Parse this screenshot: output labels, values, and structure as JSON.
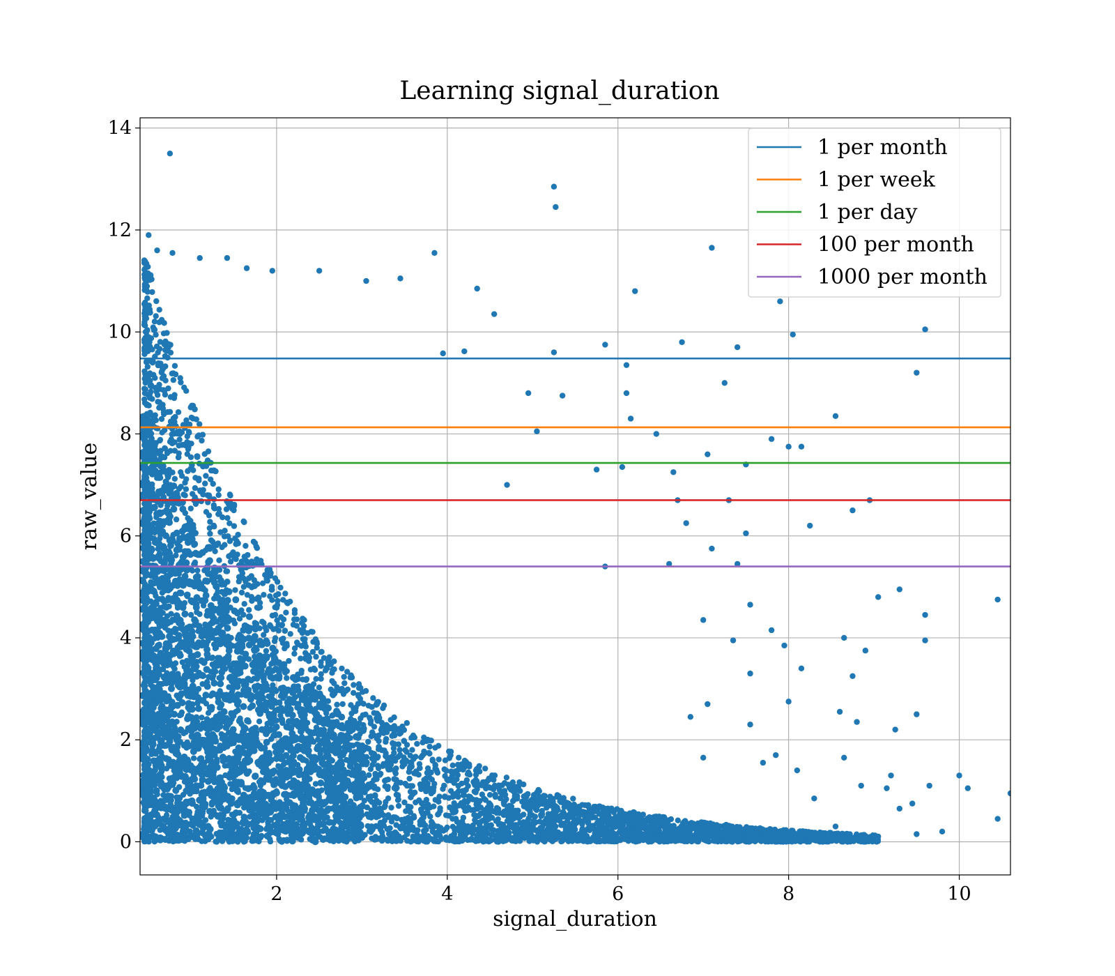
{
  "chart_data": {
    "type": "scatter",
    "title": "Learning signal_duration",
    "xlabel": "signal_duration",
    "ylabel": "raw_value",
    "xlim": [
      0.4,
      10.6
    ],
    "ylim": [
      -0.65,
      14.2
    ],
    "xticks": [
      2,
      4,
      6,
      8,
      10
    ],
    "yticks": [
      0,
      2,
      4,
      6,
      8,
      10,
      12,
      14
    ],
    "grid": true,
    "legend_position": "top-right",
    "scatter_color": "#1f77b4",
    "scatter_series": {
      "points": [
        [
          0.75,
          13.5
        ],
        [
          5.25,
          12.85
        ],
        [
          5.27,
          12.45
        ],
        [
          0.5,
          11.9
        ],
        [
          0.6,
          11.6
        ],
        [
          0.78,
          11.55
        ],
        [
          1.1,
          11.45
        ],
        [
          1.42,
          11.45
        ],
        [
          1.65,
          11.25
        ],
        [
          1.95,
          11.2
        ],
        [
          2.5,
          11.2
        ],
        [
          3.05,
          11.0
        ],
        [
          3.45,
          11.05
        ],
        [
          3.85,
          11.55
        ],
        [
          4.35,
          10.85
        ],
        [
          4.55,
          10.35
        ],
        [
          7.1,
          11.65
        ],
        [
          6.2,
          10.8
        ],
        [
          7.9,
          10.6
        ],
        [
          9.6,
          10.05
        ],
        [
          8.05,
          9.95
        ],
        [
          6.75,
          9.8
        ],
        [
          7.4,
          9.7
        ],
        [
          5.85,
          9.75
        ],
        [
          5.25,
          9.6
        ],
        [
          4.2,
          9.62
        ],
        [
          3.95,
          9.58
        ],
        [
          6.1,
          9.35
        ],
        [
          9.5,
          9.2
        ],
        [
          7.25,
          9.0
        ],
        [
          6.1,
          8.8
        ],
        [
          5.35,
          8.75
        ],
        [
          4.95,
          8.8
        ],
        [
          8.55,
          8.35
        ],
        [
          6.15,
          8.3
        ],
        [
          6.45,
          8.0
        ],
        [
          5.05,
          8.05
        ],
        [
          7.8,
          7.9
        ],
        [
          8.0,
          7.75
        ],
        [
          8.15,
          7.75
        ],
        [
          7.05,
          7.6
        ],
        [
          7.5,
          7.4
        ],
        [
          6.65,
          7.25
        ],
        [
          5.75,
          7.3
        ],
        [
          4.7,
          7.0
        ],
        [
          6.05,
          7.35
        ],
        [
          7.3,
          6.7
        ],
        [
          6.7,
          6.7
        ],
        [
          8.75,
          6.5
        ],
        [
          8.95,
          6.7
        ],
        [
          6.8,
          6.25
        ],
        [
          8.25,
          6.2
        ],
        [
          7.5,
          6.05
        ],
        [
          7.1,
          5.75
        ],
        [
          5.85,
          5.4
        ],
        [
          7.4,
          5.45
        ],
        [
          6.6,
          5.45
        ],
        [
          9.05,
          4.8
        ],
        [
          9.3,
          4.95
        ],
        [
          10.45,
          4.75
        ],
        [
          7.55,
          4.65
        ],
        [
          9.6,
          4.45
        ],
        [
          7.0,
          4.35
        ],
        [
          7.35,
          3.95
        ],
        [
          7.8,
          4.15
        ],
        [
          8.65,
          4.0
        ],
        [
          9.6,
          3.95
        ],
        [
          8.9,
          3.75
        ],
        [
          7.95,
          3.85
        ],
        [
          7.55,
          3.3
        ],
        [
          8.15,
          3.4
        ],
        [
          8.75,
          3.25
        ],
        [
          8.0,
          2.75
        ],
        [
          7.05,
          2.7
        ],
        [
          6.85,
          2.45
        ],
        [
          8.6,
          2.55
        ],
        [
          9.5,
          2.5
        ],
        [
          8.8,
          2.35
        ],
        [
          7.55,
          2.3
        ],
        [
          9.25,
          2.2
        ],
        [
          7.0,
          1.65
        ],
        [
          7.85,
          1.7
        ],
        [
          8.65,
          1.65
        ],
        [
          9.2,
          1.3
        ],
        [
          10.0,
          1.3
        ],
        [
          10.1,
          1.05
        ],
        [
          10.6,
          0.95
        ],
        [
          8.1,
          1.4
        ],
        [
          7.7,
          1.55
        ],
        [
          9.15,
          1.05
        ],
        [
          8.85,
          1.1
        ],
        [
          9.45,
          0.75
        ],
        [
          8.3,
          0.85
        ],
        [
          9.3,
          0.65
        ],
        [
          8.55,
          0.3
        ],
        [
          9.65,
          1.1
        ],
        [
          10.45,
          0.45
        ],
        [
          9.8,
          0.2
        ],
        [
          9.5,
          0.15
        ],
        [
          8.7,
          0.05
        ],
        [
          7.9,
          0.1
        ],
        [
          8.2,
          0.2
        ]
      ]
    },
    "series": [
      {
        "name": "1 per month",
        "y": 9.48,
        "color": "#1f77b4"
      },
      {
        "name": "1 per week",
        "y": 8.13,
        "color": "#ff7f0e"
      },
      {
        "name": "1 per day",
        "y": 7.43,
        "color": "#2ca02c"
      },
      {
        "name": "100 per month",
        "y": 6.7,
        "color": "#d62728"
      },
      {
        "name": "1000 per month",
        "y": 5.4,
        "color": "#9467bd"
      }
    ]
  }
}
